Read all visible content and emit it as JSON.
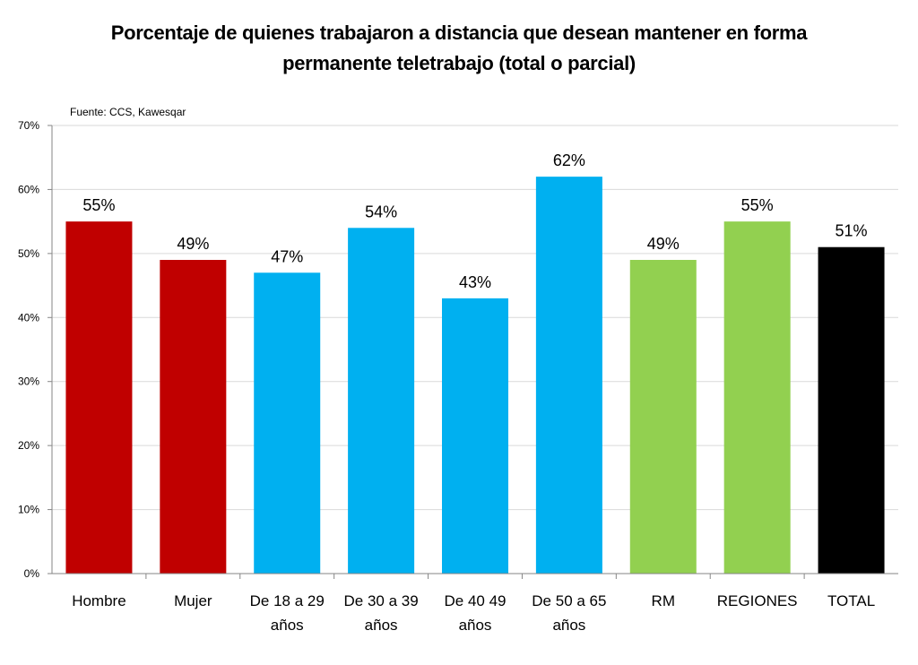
{
  "chart_data": {
    "type": "bar",
    "title_lines": [
      "Porcentaje de quienes trabajaron a distancia que desean mantener en forma",
      "permanente teletrabajo (total o parcial)"
    ],
    "source_note": "Fuente: CCS, Kawesqar",
    "categories": [
      [
        "Hombre"
      ],
      [
        "Mujer"
      ],
      [
        "De 18 a 29",
        "años"
      ],
      [
        "De 30 a 39",
        "años"
      ],
      [
        "De 40 49",
        "años"
      ],
      [
        "De 50 a 65",
        "años"
      ],
      [
        "RM"
      ],
      [
        "REGIONES"
      ],
      [
        "TOTAL"
      ]
    ],
    "values": [
      55,
      49,
      47,
      54,
      43,
      62,
      49,
      55,
      51
    ],
    "data_labels": [
      "55%",
      "49%",
      "47%",
      "54%",
      "43%",
      "62%",
      "49%",
      "55%",
      "51%"
    ],
    "bar_colors": [
      "#c00000",
      "#c00000",
      "#00b0f0",
      "#00b0f0",
      "#00b0f0",
      "#00b0f0",
      "#92d050",
      "#92d050",
      "#000000"
    ],
    "ylim": [
      0,
      70
    ],
    "yticks": [
      0,
      10,
      20,
      30,
      40,
      50,
      60,
      70
    ],
    "ytick_labels": [
      "0%",
      "10%",
      "20%",
      "30%",
      "40%",
      "50%",
      "60%",
      "70%"
    ],
    "grid": true,
    "xlabel": "",
    "ylabel": ""
  }
}
